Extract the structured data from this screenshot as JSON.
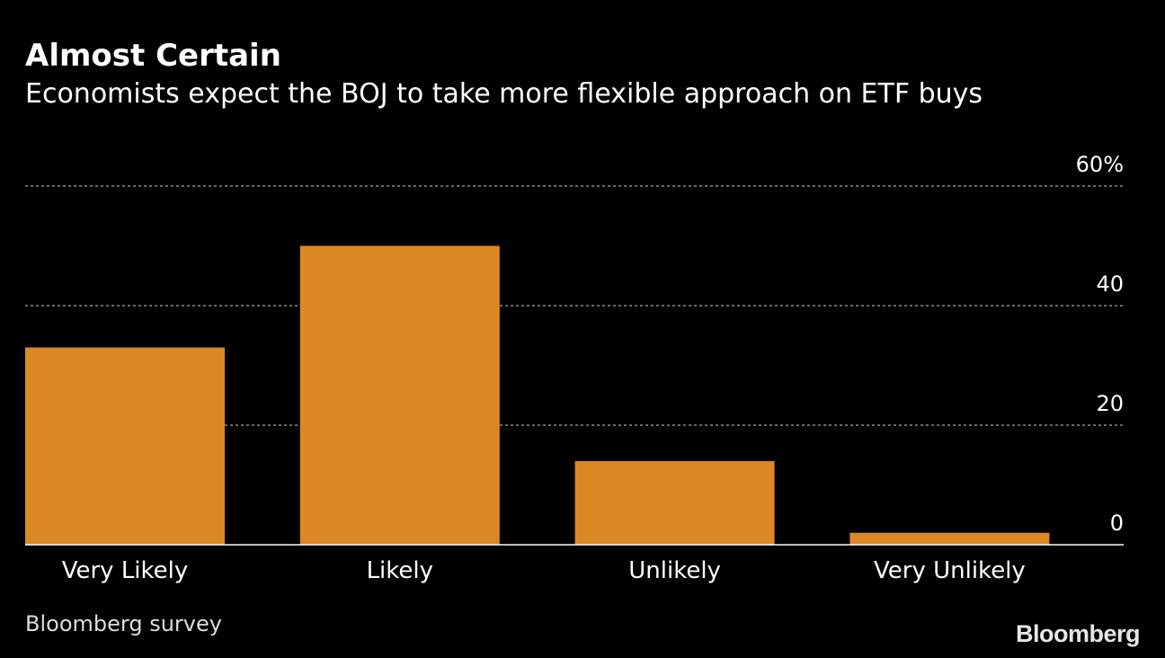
{
  "title": "Almost Certain",
  "subtitle": "Economists expect the BOJ to take more flexible approach on ETF buys",
  "source": "Bloomberg survey",
  "brand": "Bloomberg",
  "colors": {
    "background": "#000000",
    "bar": "#dc8824",
    "grid": "#8a8a8a",
    "text": "#ffffff",
    "axis_line": "#ffffff"
  },
  "chart_data": {
    "type": "bar",
    "categories": [
      "Very Likely",
      "Likely",
      "Unlikely",
      "Very Unlikely"
    ],
    "values": [
      33,
      50,
      14,
      2
    ],
    "unit": "%",
    "ylim": [
      0,
      60
    ],
    "yticks": [
      0,
      20,
      40,
      60
    ],
    "ytick_labels": [
      "0",
      "20",
      "40",
      "60%"
    ],
    "y_axis_side": "right",
    "grid": true,
    "legend": "none",
    "xlabel": "",
    "ylabel": ""
  }
}
